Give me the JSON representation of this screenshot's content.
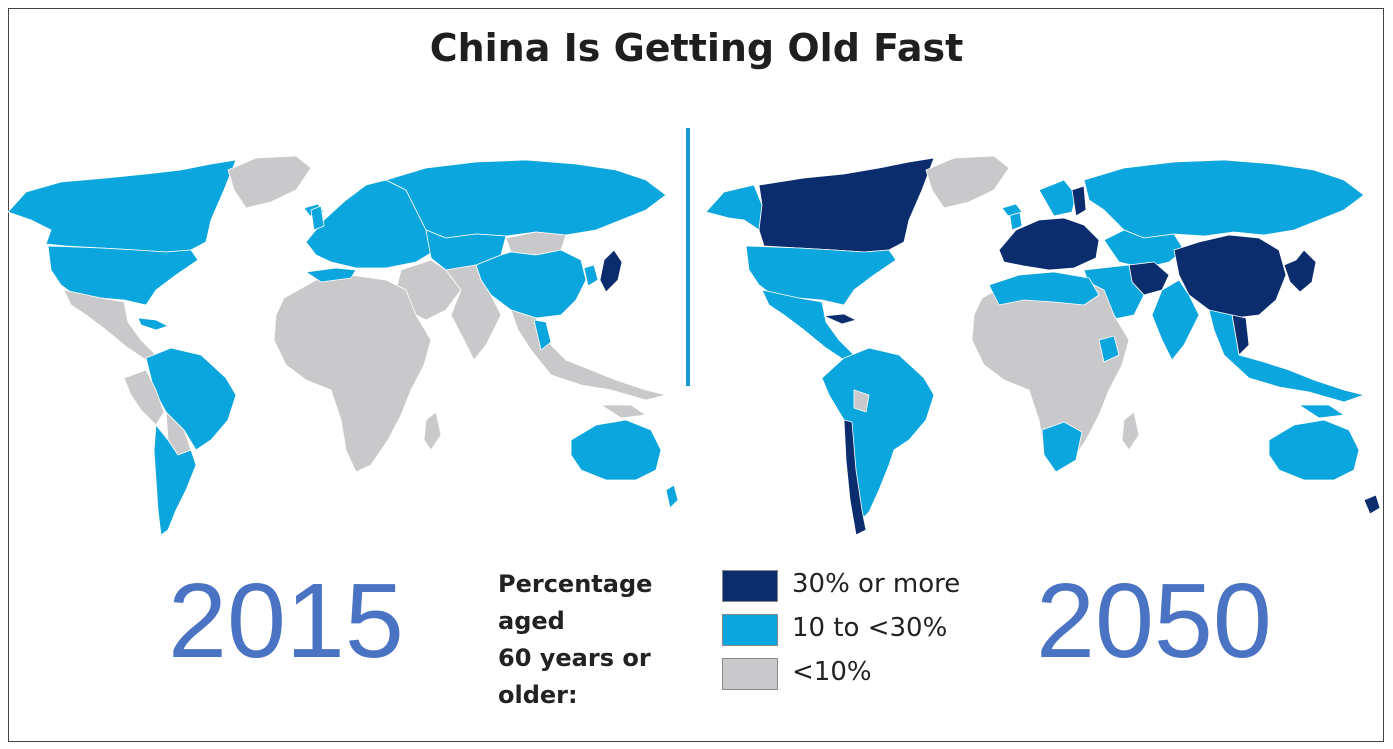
{
  "title": "China Is Getting Old Fast",
  "maps": [
    {
      "year": "2015"
    },
    {
      "year": "2050"
    }
  ],
  "legend": {
    "title_line1": "Percentage aged",
    "title_line2": "60 years or older:",
    "items": [
      {
        "label": "30% or more",
        "color": "#0b2d6e"
      },
      {
        "label": "10 to <30%",
        "color": "#0aa6dd"
      },
      {
        "label": "<10%",
        "color": "#c9c9cb"
      }
    ]
  },
  "colors": {
    "dark": "#0b2d6e",
    "mid": "#0aa6dd",
    "light": "#c9c9cb",
    "year_text": "#4a73c3",
    "divider": "#1a9bd7"
  }
}
